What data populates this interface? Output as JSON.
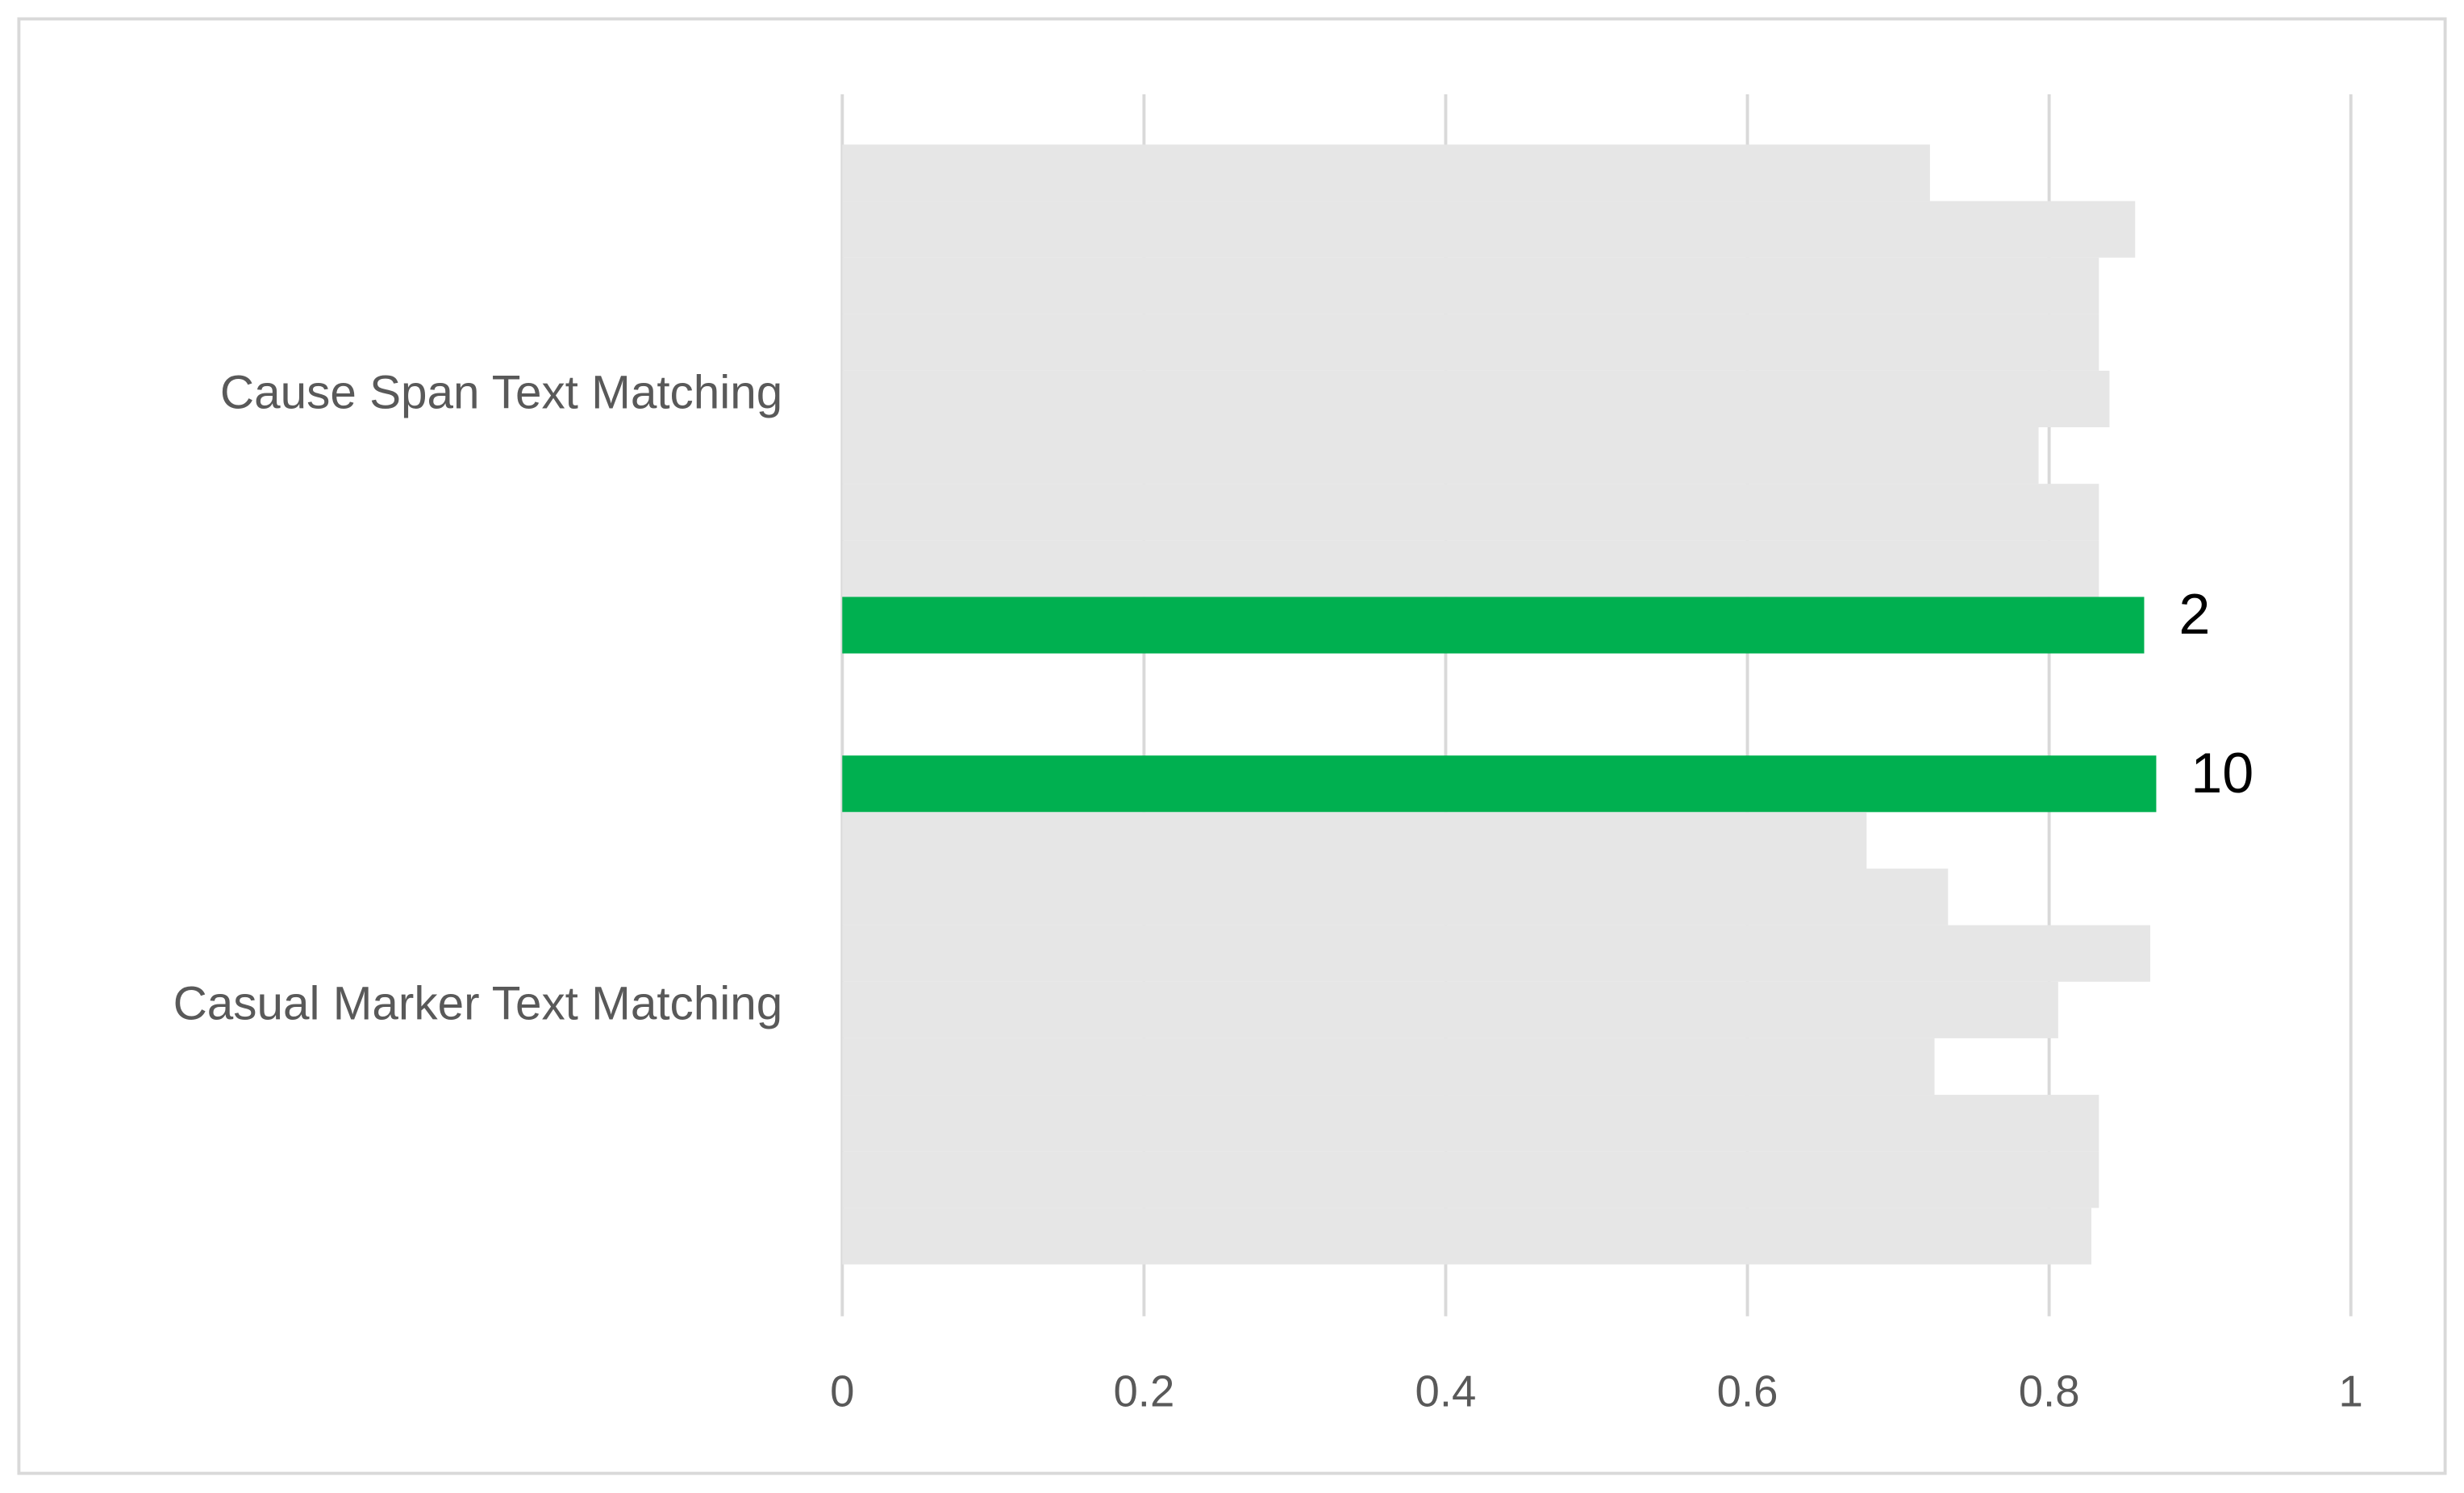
{
  "chart_data": {
    "type": "grouped-hbar",
    "groups": [
      {
        "category": "Cause Span Text Matching",
        "values": [
          0.721,
          0.857,
          0.833,
          0.833,
          0.84,
          0.793,
          0.833,
          0.833,
          0.863
        ],
        "highlight": 8,
        "highlight_label": "2"
      },
      {
        "category": "Casual Marker Text Matching",
        "values": [
          0.871,
          0.679,
          0.733,
          0.867,
          0.806,
          0.724,
          0.833,
          0.833,
          0.828
        ],
        "highlight": 0,
        "highlight_label": "10"
      }
    ],
    "color": "#e6e6e6",
    "highlight_color": "#00b050",
    "xlim": [
      0,
      1
    ],
    "xticks": [
      0,
      0.2,
      0.4,
      0.6,
      0.8,
      1
    ],
    "grid": true
  }
}
